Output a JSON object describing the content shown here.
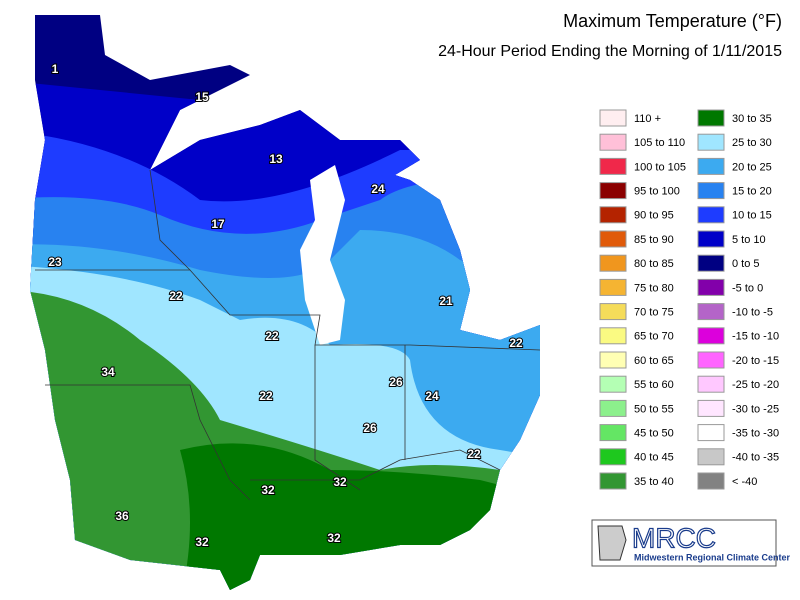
{
  "title": "Maximum Temperature (°F)",
  "subtitle": "24-Hour Period Ending the Morning of 1/11/2015",
  "legend": [
    {
      "label": "110 +",
      "color": "#ffeef0"
    },
    {
      "label": "105 to 110",
      "color": "#ffc0d8"
    },
    {
      "label": "100 to 105",
      "color": "#f0284a"
    },
    {
      "label": "95 to 100",
      "color": "#8b0000"
    },
    {
      "label": "90 to 95",
      "color": "#b42300"
    },
    {
      "label": "85 to 90",
      "color": "#e05a0a"
    },
    {
      "label": "80 to 85",
      "color": "#f0961e"
    },
    {
      "label": "75 to 80",
      "color": "#f5b432"
    },
    {
      "label": "70 to 75",
      "color": "#f5dc5a"
    },
    {
      "label": "65 to 70",
      "color": "#fafa82"
    },
    {
      "label": "60 to 65",
      "color": "#ffffb4"
    },
    {
      "label": "55 to 60",
      "color": "#b4ffb4"
    },
    {
      "label": "50 to 55",
      "color": "#8cf08c"
    },
    {
      "label": "45 to 50",
      "color": "#64e664"
    },
    {
      "label": "40 to 45",
      "color": "#1ec81e"
    },
    {
      "label": "35 to 40",
      "color": "#329632"
    },
    {
      "label": "30 to 35",
      "color": "#007800"
    },
    {
      "label": "25 to 30",
      "color": "#a0e6ff"
    },
    {
      "label": "20 to 25",
      "color": "#3caaf0"
    },
    {
      "label": "15 to 20",
      "color": "#2882f0"
    },
    {
      "label": "10 to 15",
      "color": "#1e3cff"
    },
    {
      "label": "5 to 10",
      "color": "#0000c8"
    },
    {
      "label": "0 to 5",
      "color": "#000082"
    },
    {
      "label": "-5 to 0",
      "color": "#8200aa"
    },
    {
      "label": "-10 to -5",
      "color": "#b464c8"
    },
    {
      "label": "-15 to -10",
      "color": "#dc00dc"
    },
    {
      "label": "-20 to -15",
      "color": "#ff64ff"
    },
    {
      "label": "-25 to -20",
      "color": "#ffc8ff"
    },
    {
      "label": "-30 to -25",
      "color": "#ffe6ff"
    },
    {
      "label": "-35 to -30",
      "color": "#ffffff"
    },
    {
      "label": "-40 to -35",
      "color": "#c8c8c8"
    },
    {
      "label": "< -40",
      "color": "#828282"
    }
  ],
  "map_labels": [
    "1",
    "15",
    "13",
    "17",
    "24",
    "23",
    "22",
    "21",
    "22",
    "22",
    "34",
    "26",
    "22",
    "24",
    "26",
    "22",
    "32",
    "32",
    "36",
    "32",
    "32"
  ],
  "logo": {
    "name": "MRCC",
    "subtitle": "Midwestern Regional Climate Center"
  }
}
